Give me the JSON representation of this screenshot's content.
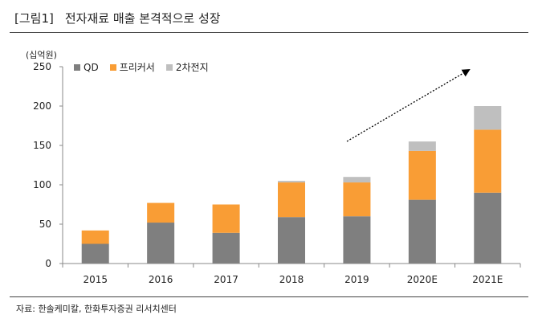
{
  "header": {
    "tag": "[그림1]",
    "title": "전자재료 매출 본격적으로 성장"
  },
  "unit_label": "(십억원)",
  "source": "자료: 한솔케미칼, 한화투자증권 리서치센터",
  "colors": {
    "QD": "#7f7f7f",
    "프리커서": "#f99d35",
    "2차전지": "#bfbfbf",
    "axis": "#888888",
    "arrow": "#000000"
  },
  "chart_data": {
    "type": "bar",
    "stacked": true,
    "categories": [
      "2015",
      "2016",
      "2017",
      "2018",
      "2019",
      "2020E",
      "2021E"
    ],
    "series": [
      {
        "name": "QD",
        "values": [
          25,
          52,
          39,
          59,
          60,
          81,
          90
        ]
      },
      {
        "name": "프리커서",
        "values": [
          17,
          25,
          36,
          44,
          43,
          62,
          80
        ]
      },
      {
        "name": "2차전지",
        "values": [
          0,
          0,
          0,
          2,
          7,
          12,
          30
        ]
      }
    ],
    "ylim": [
      0,
      250
    ],
    "yticks": [
      0,
      50,
      100,
      150,
      200,
      250
    ],
    "grid": false,
    "legend_position": "top-left",
    "trend_arrow": true
  }
}
